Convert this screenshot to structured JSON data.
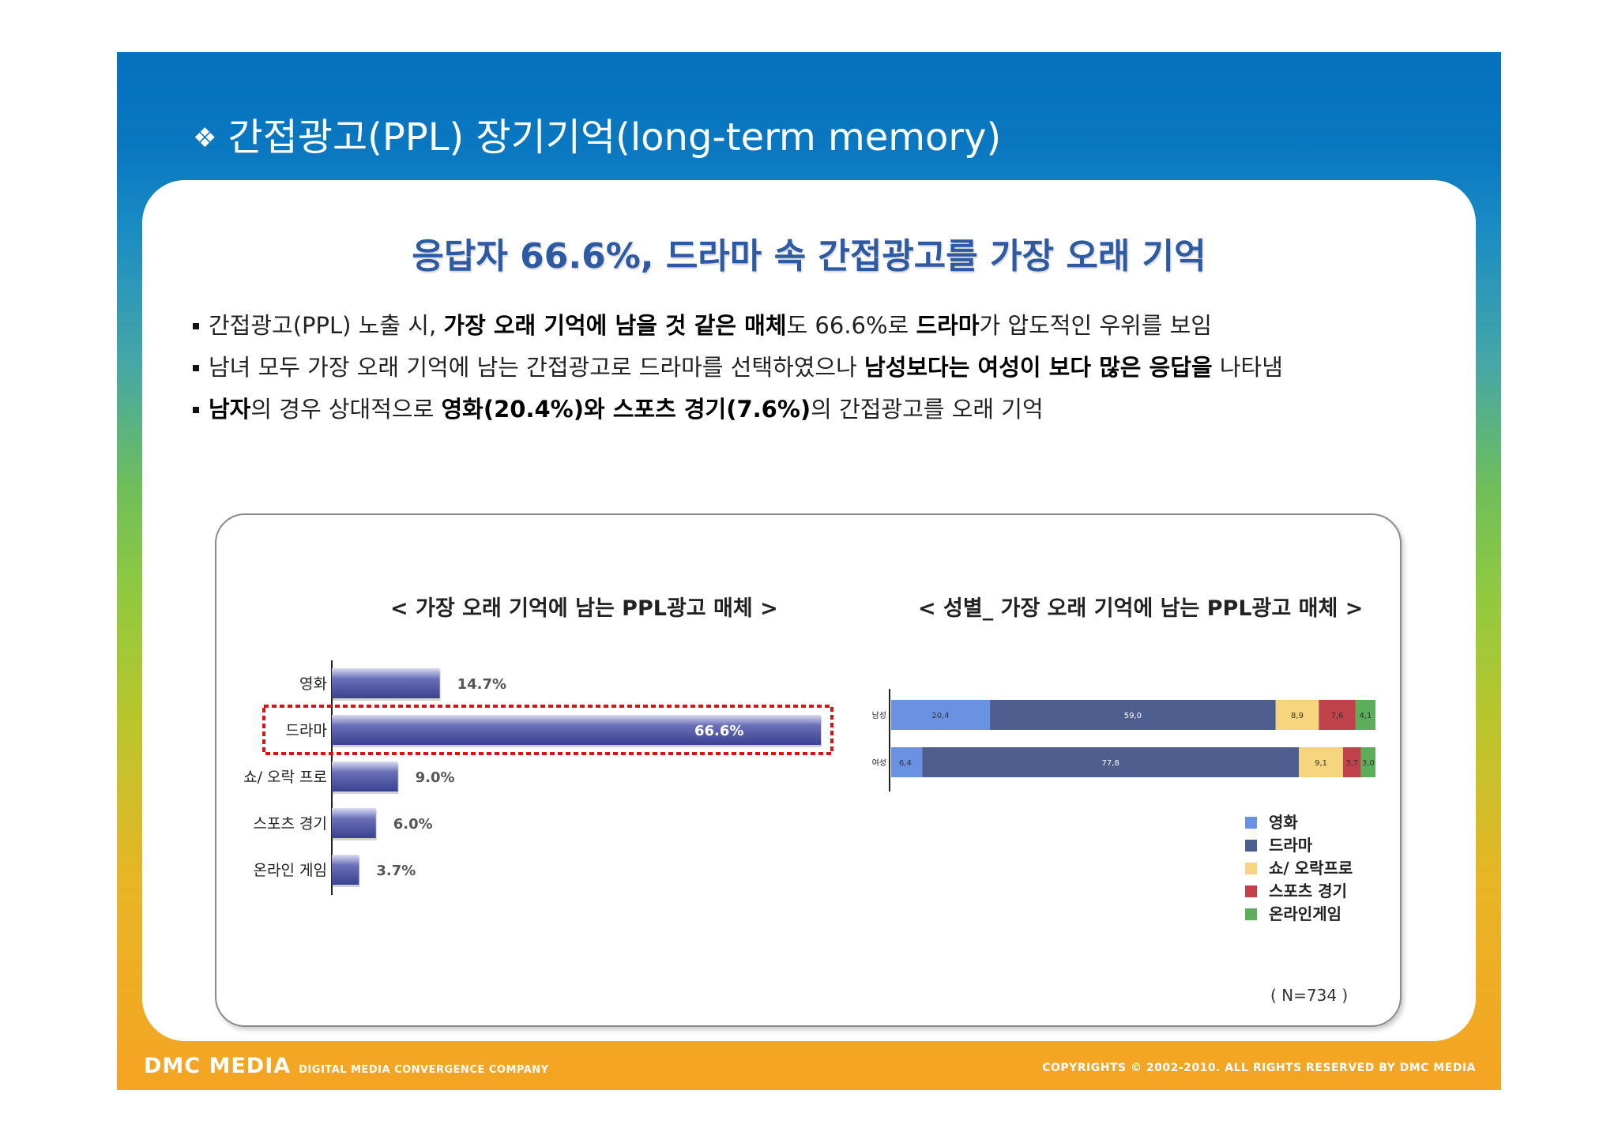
{
  "slide": {
    "title_marker": "❖",
    "title": "간접광고(PPL) 장기기억(long-term memory)",
    "headline": "응답자 66.6%, 드라마 속 간접광고를 가장 오래 기억",
    "bullets": [
      [
        {
          "t": "간접광고(PPL) 노출 시, ",
          "b": false
        },
        {
          "t": "가장 오래 기억에 남을 것 같은 매체",
          "b": true
        },
        {
          "t": "도 66.6%로 ",
          "b": false
        },
        {
          "t": "드라마",
          "b": true
        },
        {
          "t": "가 압도적인 우위를 보임",
          "b": false
        }
      ],
      [
        {
          "t": "남녀 모두 가장 오래 기억에 남는 간접광고로 드라마를 선택하였으나 ",
          "b": false
        },
        {
          "t": "남성보다는 여성이 보다 많은 응답을",
          "b": true
        },
        {
          "t": " 나타냄",
          "b": false
        }
      ],
      [
        {
          "t": "남자",
          "b": true
        },
        {
          "t": "의 경우 상대적으로 ",
          "b": false
        },
        {
          "t": "영화(20.4%)와 스포츠 경기(7.6%)",
          "b": true
        },
        {
          "t": "의 간접광고를 오래 기억",
          "b": false
        }
      ]
    ],
    "sample_size": "( N=734 )",
    "footer": {
      "logo": "DMC MEDIA",
      "tagline": "DIGITAL MEDIA CONVERGENCE COMPANY",
      "copyright": "COPYRIGHTS © 2002-2010. ALL RIGHTS RESERVED BY DMC MEDIA"
    }
  },
  "chart_data": [
    {
      "type": "bar",
      "orientation": "horizontal",
      "title": "< 가장 오래 기억에 남는 PPL광고 매체 >",
      "categories": [
        "영화",
        "드라마",
        "쇼/ 오락 프로",
        "스포츠 경기",
        "온라인 게임"
      ],
      "values": [
        14.7,
        66.6,
        9.0,
        6.0,
        3.7
      ],
      "value_labels": [
        "14.7%",
        "66.6%",
        "9.0%",
        "6.0%",
        "3.7%"
      ],
      "highlight": "드라마",
      "xlim": [
        0,
        70
      ],
      "color": "#3a418f",
      "grid": false
    },
    {
      "type": "bar",
      "orientation": "horizontal",
      "stacked": true,
      "title": "< 성별_ 가장 오래 기억에 남는 PPL광고 매체 >",
      "categories": [
        "남성",
        "여성"
      ],
      "series": [
        {
          "name": "영화",
          "values": [
            20.4,
            6.4
          ],
          "labels": [
            "20,4",
            "6,4"
          ],
          "color": "#6a92e3"
        },
        {
          "name": "드라마",
          "values": [
            59.0,
            77.8
          ],
          "labels": [
            "59,0",
            "77,8"
          ],
          "color": "#4e5e8f"
        },
        {
          "name": "쇼/ 오락프로",
          "values": [
            8.9,
            9.1
          ],
          "labels": [
            "8,9",
            "9,1"
          ],
          "color": "#f6d57e"
        },
        {
          "name": "스포츠 경기",
          "values": [
            7.6,
            3.7
          ],
          "labels": [
            "7,6",
            "3,7"
          ],
          "color": "#c0424a"
        },
        {
          "name": "온라인게임",
          "values": [
            4.1,
            3.0
          ],
          "labels": [
            "4,1",
            "3,0"
          ],
          "color": "#5cae5a"
        }
      ],
      "xlim": [
        0,
        100
      ],
      "legend": "bottom-right",
      "grid": false
    }
  ]
}
